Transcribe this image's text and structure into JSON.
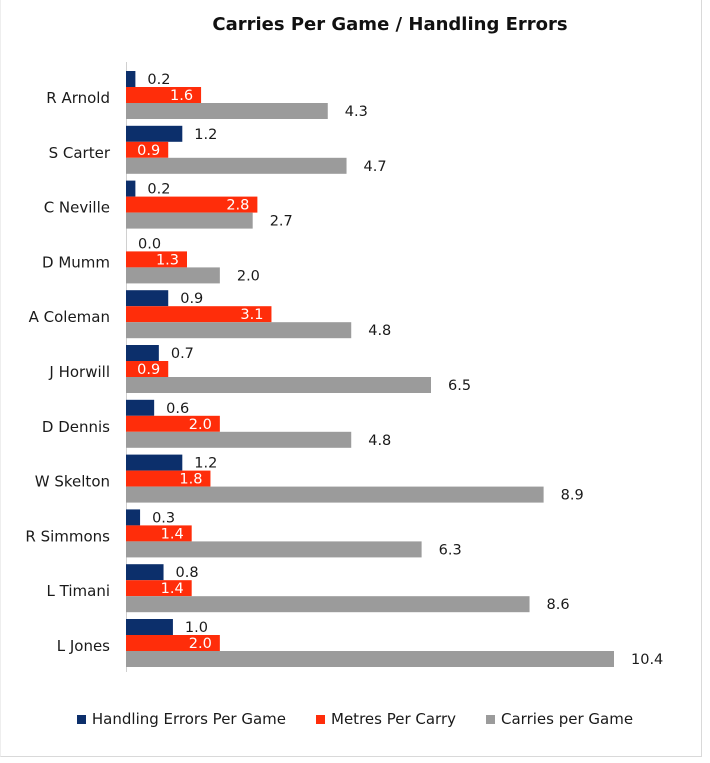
{
  "chart_data": {
    "type": "bar",
    "orientation": "horizontal",
    "title": "Carries Per Game / Handling Errors",
    "categories": [
      "R Arnold",
      "S Carter",
      "C Neville",
      "D Mumm",
      "A Coleman",
      "J Horwill",
      "D Dennis",
      "W Skelton",
      "R Simmons",
      "L Timani",
      "L Jones"
    ],
    "series": [
      {
        "name": "Handling Errors Per Game",
        "color": "#0c2f6b",
        "values": [
          0.2,
          1.2,
          0.2,
          0.0,
          0.9,
          0.7,
          0.6,
          1.2,
          0.3,
          0.8,
          1.0
        ],
        "labels": [
          "0.2",
          "1.2",
          "0.2",
          "0.0",
          "0.9",
          "0.7",
          "0.6",
          "1.2",
          "0.3",
          "0.8",
          "1.0"
        ]
      },
      {
        "name": "Metres Per Carry",
        "color": "#ff2d0a",
        "values": [
          1.6,
          0.9,
          2.8,
          1.3,
          3.1,
          0.9,
          2.0,
          1.8,
          1.4,
          1.4,
          2.0
        ],
        "labels": [
          "1.6",
          "0.9",
          "2.8",
          "1.3",
          "3.1",
          "0.9",
          "2.0",
          "1.8",
          "1.4",
          "1.4",
          "2.0"
        ]
      },
      {
        "name": "Carries per Game",
        "color": "#9b9b9b",
        "values": [
          4.3,
          4.7,
          2.7,
          2.0,
          4.8,
          6.5,
          4.8,
          8.9,
          6.3,
          8.6,
          10.4
        ],
        "labels": [
          "4.3",
          "4.7",
          "2.7",
          "2.0",
          "4.8",
          "6.5",
          "4.8",
          "8.9",
          "6.3",
          "8.6",
          "10.4"
        ]
      }
    ],
    "xlim": [
      0,
      10.4
    ],
    "grid": false,
    "legend_position": "bottom"
  }
}
